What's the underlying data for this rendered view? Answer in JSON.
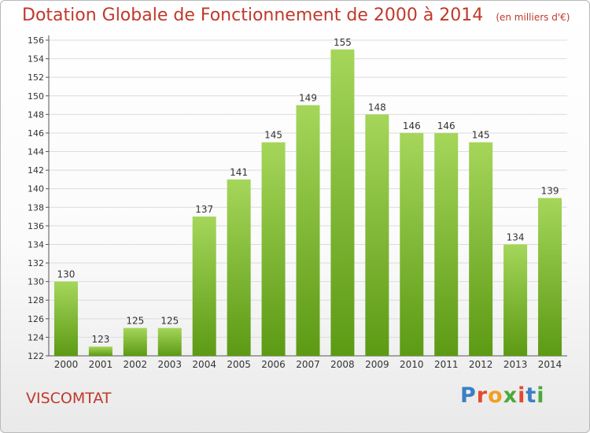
{
  "header": {
    "title": "Dotation Globale de Fonctionnement de 2000 à 2014",
    "unit": "(en milliers d'€)"
  },
  "commune": "VISCOMTAT",
  "logo": {
    "text": "Proxiti",
    "colors": [
      "#3b7fc4",
      "#e24a2f",
      "#f0a020",
      "#4aa83c",
      "#e24a2f",
      "#3b7fc4",
      "#4aa83c"
    ]
  },
  "chart_data": {
    "type": "bar",
    "title": "Dotation Globale de Fonctionnement de 2000 à 2014",
    "xlabel": "",
    "ylabel": "",
    "categories": [
      "2000",
      "2001",
      "2002",
      "2003",
      "2004",
      "2005",
      "2006",
      "2007",
      "2008",
      "2009",
      "2010",
      "2011",
      "2012",
      "2013",
      "2014"
    ],
    "values": [
      130,
      123,
      125,
      125,
      137,
      141,
      145,
      149,
      155,
      148,
      146,
      146,
      145,
      134,
      139
    ],
    "ylim": [
      122,
      156
    ],
    "yticks": [
      122,
      124,
      126,
      128,
      130,
      132,
      134,
      136,
      138,
      140,
      142,
      144,
      146,
      148,
      150,
      152,
      154,
      156
    ],
    "grid": true,
    "bar_color": "#8cc63f"
  }
}
